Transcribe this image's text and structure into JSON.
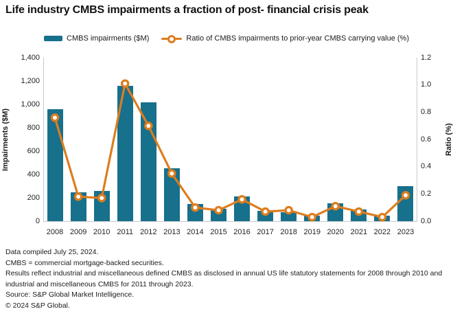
{
  "title": "Life industry CMBS impairments a fraction of post- financial crisis peak",
  "legend": {
    "bars_label": "CMBS impairments ($M)",
    "line_label": "Ratio of CMBS impairments to prior-year CMBS carrying value (%)"
  },
  "chart_data": {
    "type": "bar",
    "subtype": "bar+line dual-axis",
    "title": "Life industry CMBS impairments a fraction of post- financial crisis peak",
    "categories": [
      "2008",
      "2009",
      "2010",
      "2011",
      "2012",
      "2013",
      "2014",
      "2015",
      "2016",
      "2017",
      "2018",
      "2019",
      "2020",
      "2021",
      "2022",
      "2023"
    ],
    "series": [
      {
        "name": "CMBS impairments ($M)",
        "type": "bar",
        "axis": "left",
        "color": "#17708c",
        "values": [
          960,
          245,
          260,
          1160,
          1015,
          455,
          150,
          105,
          210,
          90,
          75,
          50,
          155,
          100,
          45,
          300
        ]
      },
      {
        "name": "Ratio of CMBS impairments to prior-year CMBS carrying value (%)",
        "type": "line",
        "axis": "right",
        "color": "#dd7d1e",
        "marker": "circle-open",
        "values": [
          0.76,
          0.18,
          0.17,
          1.01,
          0.7,
          0.35,
          0.1,
          0.08,
          0.16,
          0.07,
          0.08,
          0.03,
          0.11,
          0.07,
          0.03,
          0.19
        ]
      }
    ],
    "xlabel": "",
    "ylabel_left": "Impairments ($M)",
    "ylabel_right": "Ratio (%)",
    "ylim_left": [
      0,
      1400
    ],
    "ylim_right": [
      0,
      1.2
    ],
    "yticks_left": [
      "1,400",
      "1,200",
      "1,000",
      "800",
      "600",
      "400",
      "200",
      "0"
    ],
    "yticks_right": [
      "1.2",
      "1.0",
      "0.8",
      "0.6",
      "0.4",
      "0.2",
      "0.0"
    ],
    "grid": false,
    "legend_position": "top"
  },
  "footer": {
    "lines": [
      "Data compiled July 25, 2024.",
      "CMBS = commercial mortgage-backed securities.",
      "Results reflect industrial and miscellaneous defined CMBS as disclosed in annual US life statutory statements for 2008 through 2010 and industrial and miscellaneous CMBS for 2011 through 2023.",
      "Source: S&P Global Market Intelligence.",
      "© 2024 S&P Global."
    ]
  },
  "colors": {
    "bar": "#17708c",
    "line": "#dd7d1e",
    "axis": "#c9c9c9",
    "text": "#1a1a1a"
  }
}
